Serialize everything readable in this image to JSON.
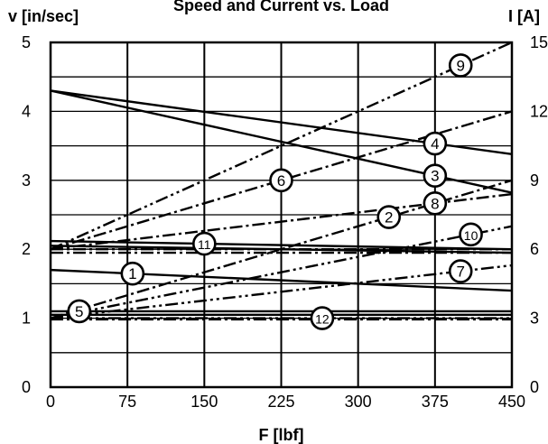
{
  "chart_data": {
    "type": "line",
    "title": "Speed and Current vs. Load",
    "xlabel": "F [lbf]",
    "ylabel_left": "v [in/sec]",
    "ylabel_right": "I [A]",
    "xlim": [
      0,
      450
    ],
    "ylim_left": [
      0,
      5
    ],
    "ylim_right": [
      0,
      15
    ],
    "x_ticks": [
      "0",
      "75",
      "150",
      "225",
      "300",
      "375",
      "450"
    ],
    "y_ticks_left": [
      "0",
      "1",
      "2",
      "3",
      "4",
      "5"
    ],
    "y_ticks_right": [
      "0",
      "3",
      "6",
      "9",
      "12",
      "15"
    ],
    "grid": true,
    "series": [
      {
        "name": "1",
        "axis": "left",
        "style": "solid",
        "x": [
          0,
          450
        ],
        "y": [
          1.7,
          1.4
        ],
        "marker_x": 80
      },
      {
        "name": "2",
        "axis": "right",
        "style": "dash-dot",
        "x": [
          0,
          450
        ],
        "y": [
          3,
          9
        ],
        "marker_x": 330
      },
      {
        "name": "3",
        "axis": "left",
        "style": "solid",
        "x": [
          0,
          450
        ],
        "y": [
          4.3,
          2.82
        ],
        "marker_x": 375
      },
      {
        "name": "4",
        "axis": "left",
        "style": "solid",
        "x": [
          0,
          450
        ],
        "y": [
          4.3,
          3.38
        ],
        "marker_x": 375
      },
      {
        "name": "5",
        "axis": "left",
        "style": "solid",
        "x": [
          0,
          450
        ],
        "y": [
          1.1,
          1.1
        ],
        "marker_x": 28
      },
      {
        "name": "6",
        "axis": "right",
        "style": "dash-dot",
        "x": [
          0,
          450
        ],
        "y": [
          6,
          12
        ],
        "marker_x": 225
      },
      {
        "name": "7",
        "axis": "right",
        "style": "dash-dot-dot",
        "x": [
          0,
          450
        ],
        "y": [
          3,
          5.3
        ],
        "marker_x": 400
      },
      {
        "name": "8",
        "axis": "right",
        "style": "dash-dot",
        "x": [
          0,
          450
        ],
        "y": [
          6,
          8.4
        ],
        "marker_x": 375
      },
      {
        "name": "9",
        "axis": "right",
        "style": "dash-dot-dot",
        "x": [
          0,
          450
        ],
        "y": [
          6,
          15
        ],
        "marker_x": 400
      },
      {
        "name": "10",
        "axis": "right",
        "style": "dash-dot-dot",
        "x": [
          0,
          450
        ],
        "y": [
          3,
          7
        ],
        "marker_x": 410
      },
      {
        "name": "11",
        "axis": "left",
        "style": "solid",
        "x": [
          0,
          450
        ],
        "y": [
          2.12,
          2.0
        ],
        "marker_x": 150
      },
      {
        "name": "12",
        "axis": "right",
        "style": "dash-dot-dot",
        "x": [
          0,
          450
        ],
        "y": [
          3,
          3
        ],
        "marker_x": 265
      }
    ],
    "extra_lines": [
      {
        "axis": "left",
        "style": "solid",
        "x": [
          0,
          450
        ],
        "y": [
          1.05,
          1.05
        ]
      },
      {
        "axis": "left",
        "style": "solid",
        "x": [
          0,
          450
        ],
        "y": [
          2.05,
          1.95
        ]
      },
      {
        "axis": "right",
        "style": "dash-dot",
        "x": [
          0,
          450
        ],
        "y": [
          6,
          6
        ]
      },
      {
        "axis": "right",
        "style": "dash-dot",
        "x": [
          0,
          450
        ],
        "y": [
          5.85,
          5.85
        ]
      },
      {
        "axis": "right",
        "style": "dash-dot",
        "x": [
          0,
          450
        ],
        "y": [
          2.95,
          2.95
        ]
      }
    ]
  }
}
